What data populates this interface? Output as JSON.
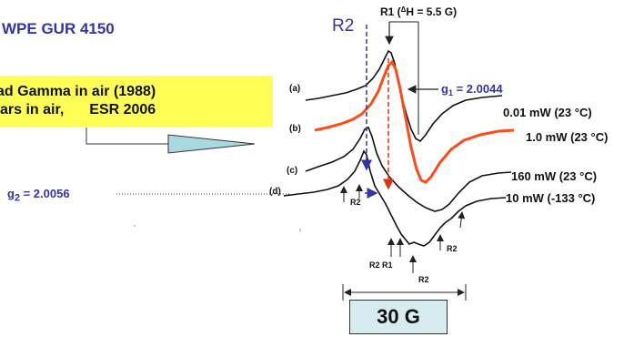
{
  "title": "WPE GUR 4150",
  "note": {
    "line1": "ad Gamma in air (1988)",
    "line2a": "ars in air,",
    "line2b": "ESR 2006"
  },
  "labels": {
    "r2_top": "R2",
    "r1_top": "R1 (",
    "r1_delta": "Δ",
    "r1_rest": "H = 5.5 G)",
    "g1_prefix": "g",
    "g1_sub": "1",
    "g1_value": " = 2.0044",
    "g2_prefix": "g",
    "g2_sub": "2",
    "g2_value": " = 2.0056",
    "trace_a": "(a)",
    "trace_b": "(b)",
    "trace_c": "(c)",
    "trace_d": "(d)",
    "cond_a": "0.01 mW (23 °C)",
    "cond_b": "1.0 mW (23 °C)",
    "cond_c": "160 mW (23 °C)",
    "cond_d": "10 mW (-133 °C)",
    "r2_d": "R2",
    "r2_bottom_right": "R2",
    "r2_r1": "R2 R1",
    "r2_bottom": "R2",
    "scale": "30 G"
  },
  "colors": {
    "title": "#3333aa",
    "blue": "#3333aa",
    "orange_trace": "#ff4a1a",
    "arrow_red": "#e23010",
    "highlight": "#ffff55",
    "scale_box": "#d6ecf0"
  }
}
